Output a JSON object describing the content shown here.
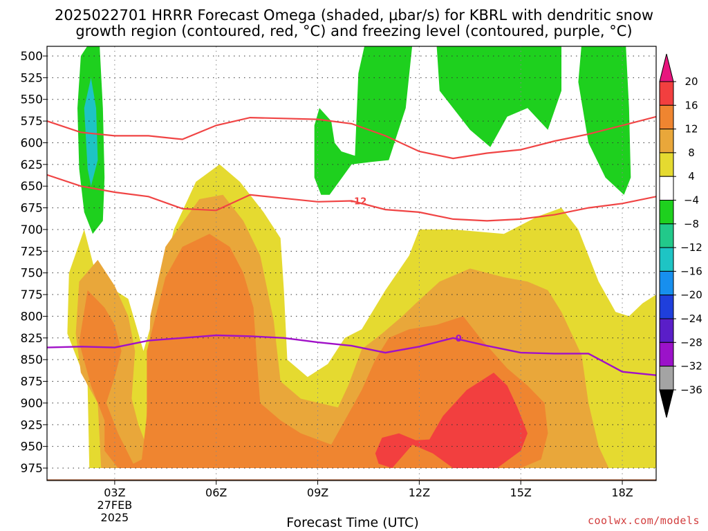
{
  "title_line1": "2025022701 HRRR Forecast Omega (shaded, μbar/s) for KBRL with dendritic snow",
  "title_line2": "growth region (contoured, red, °C) and freezing level (contoured, purple, °C)",
  "credit": "coolwx.com/models",
  "chart_data": {
    "type": "area",
    "xlabel": "Forecast Time (UTC)",
    "ylabel": "",
    "x_range_hours_utc": [
      1,
      19
    ],
    "y_axis": {
      "scale": "pressure (hPa), inverted",
      "range": [
        975,
        500
      ]
    },
    "grid": "dotted",
    "x_ticks": [
      {
        "hour": 3,
        "label": "03Z",
        "sub": [
          "27FEB",
          "2025"
        ]
      },
      {
        "hour": 6,
        "label": "06Z"
      },
      {
        "hour": 9,
        "label": "09Z"
      },
      {
        "hour": 12,
        "label": "12Z"
      },
      {
        "hour": 15,
        "label": "15Z"
      },
      {
        "hour": 18,
        "label": "18Z"
      }
    ],
    "y_ticks": [
      500,
      525,
      550,
      575,
      600,
      625,
      650,
      675,
      700,
      725,
      750,
      775,
      800,
      825,
      850,
      875,
      900,
      925,
      950,
      975
    ],
    "colorbar": {
      "labels": [
        "20",
        "16",
        "12",
        "8",
        "4",
        "−4",
        "−8",
        "−12",
        "−16",
        "−20",
        "−24",
        "−28",
        "−32",
        "−36"
      ],
      "bins": [
        {
          "min": 20,
          "max": null,
          "color": "#e8157e"
        },
        {
          "min": 16,
          "max": 20,
          "color": "#f23f3f"
        },
        {
          "min": 12,
          "max": 16,
          "color": "#ef8530"
        },
        {
          "min": 8,
          "max": 12,
          "color": "#e9a73a"
        },
        {
          "min": 4,
          "max": 8,
          "color": "#e5da30"
        },
        {
          "min": -4,
          "max": 4,
          "color": "#ffffff"
        },
        {
          "min": -8,
          "max": -4,
          "color": "#1ed01e"
        },
        {
          "min": -12,
          "max": -8,
          "color": "#22c98a"
        },
        {
          "min": -16,
          "max": -12,
          "color": "#1ec4c4"
        },
        {
          "min": -20,
          "max": -16,
          "color": "#178fee"
        },
        {
          "min": -24,
          "max": -20,
          "color": "#1f3fdc"
        },
        {
          "min": -28,
          "max": -24,
          "color": "#5a1ec8"
        },
        {
          "min": -32,
          "max": -28,
          "color": "#9b12c9"
        },
        {
          "min": -36,
          "max": -32,
          "color": "#a4a4a4"
        },
        {
          "min": null,
          "max": -36,
          "color": "#000000"
        }
      ]
    },
    "shaded_regions": [
      {
        "level": 4,
        "color": "#e5da30",
        "points": [
          [
            2.25,
            975
          ],
          [
            2.2,
            880
          ],
          [
            1.6,
            820
          ],
          [
            1.65,
            750
          ],
          [
            2.1,
            700
          ],
          [
            2.5,
            760
          ],
          [
            3.0,
            770
          ],
          [
            3.4,
            780
          ],
          [
            3.85,
            840
          ],
          [
            4.15,
            800
          ],
          [
            4.75,
            700
          ],
          [
            5.4,
            645
          ],
          [
            6.1,
            625
          ],
          [
            6.7,
            645
          ],
          [
            7.4,
            680
          ],
          [
            7.9,
            710
          ],
          [
            8.0,
            770
          ],
          [
            8.1,
            850
          ],
          [
            8.7,
            870
          ],
          [
            9.3,
            855
          ],
          [
            9.8,
            825
          ],
          [
            10.3,
            815
          ],
          [
            11.0,
            770
          ],
          [
            11.7,
            730
          ],
          [
            12.0,
            700
          ],
          [
            13.0,
            700
          ],
          [
            14.5,
            705
          ],
          [
            15.5,
            685
          ],
          [
            16.2,
            675
          ],
          [
            16.7,
            700
          ],
          [
            17.3,
            760
          ],
          [
            17.8,
            795
          ],
          [
            18.2,
            800
          ],
          [
            18.6,
            785
          ],
          [
            19.0,
            775
          ],
          [
            19.0,
            975
          ]
        ]
      },
      {
        "level": 8,
        "color": "#e9a73a",
        "points": [
          [
            2.6,
            975
          ],
          [
            2.5,
            900
          ],
          [
            2.0,
            865
          ],
          [
            1.85,
            820
          ],
          [
            1.95,
            760
          ],
          [
            2.5,
            735
          ],
          [
            3.0,
            765
          ],
          [
            3.4,
            800
          ],
          [
            3.6,
            840
          ],
          [
            3.5,
            895
          ],
          [
            3.7,
            925
          ],
          [
            3.9,
            945
          ],
          [
            4.0,
            870
          ],
          [
            4.05,
            800
          ],
          [
            4.5,
            720
          ],
          [
            5.5,
            665
          ],
          [
            6.2,
            660
          ],
          [
            6.8,
            690
          ],
          [
            7.3,
            730
          ],
          [
            7.7,
            805
          ],
          [
            7.9,
            875
          ],
          [
            8.5,
            895
          ],
          [
            9.6,
            905
          ],
          [
            9.9,
            880
          ],
          [
            10.3,
            838
          ],
          [
            10.9,
            820
          ],
          [
            11.5,
            800
          ],
          [
            11.9,
            785
          ],
          [
            12.6,
            760
          ],
          [
            13.5,
            745
          ],
          [
            14.5,
            755
          ],
          [
            15.2,
            760
          ],
          [
            15.8,
            770
          ],
          [
            16.2,
            795
          ],
          [
            16.8,
            845
          ],
          [
            17.0,
            900
          ],
          [
            17.3,
            950
          ],
          [
            17.6,
            975
          ]
        ]
      },
      {
        "level": 12,
        "color": "#ef8530",
        "points": [
          [
            3.1,
            975
          ],
          [
            2.7,
            955
          ],
          [
            2.7,
            920
          ],
          [
            2.3,
            880
          ],
          [
            1.95,
            830
          ],
          [
            2.2,
            770
          ],
          [
            2.7,
            790
          ],
          [
            3.0,
            810
          ],
          [
            3.2,
            840
          ],
          [
            3.0,
            870
          ],
          [
            2.75,
            900
          ],
          [
            3.1,
            935
          ],
          [
            3.55,
            970
          ],
          [
            3.8,
            965
          ],
          [
            3.95,
            915
          ],
          [
            3.95,
            840
          ],
          [
            4.5,
            755
          ],
          [
            5.0,
            720
          ],
          [
            5.8,
            705
          ],
          [
            6.4,
            720
          ],
          [
            6.8,
            750
          ],
          [
            7.1,
            790
          ],
          [
            7.2,
            850
          ],
          [
            7.3,
            900
          ],
          [
            7.9,
            920
          ],
          [
            8.5,
            935
          ],
          [
            9.4,
            948
          ],
          [
            9.8,
            920
          ],
          [
            10.3,
            885
          ],
          [
            10.7,
            850
          ],
          [
            11.1,
            825
          ],
          [
            11.7,
            815
          ],
          [
            12.5,
            810
          ],
          [
            13.3,
            800
          ],
          [
            13.8,
            825
          ],
          [
            14.6,
            860
          ],
          [
            15.2,
            880
          ],
          [
            15.7,
            900
          ],
          [
            15.8,
            935
          ],
          [
            15.6,
            965
          ],
          [
            15.0,
            975
          ]
        ]
      },
      {
        "level": 16,
        "color": "#f23f3f",
        "points": [
          [
            10.7,
            958
          ],
          [
            10.9,
            940
          ],
          [
            11.4,
            935
          ],
          [
            11.9,
            943
          ],
          [
            12.3,
            942
          ],
          [
            12.7,
            915
          ],
          [
            13.4,
            885
          ],
          [
            14.2,
            865
          ],
          [
            14.6,
            880
          ],
          [
            14.9,
            905
          ],
          [
            15.2,
            935
          ],
          [
            15.0,
            955
          ],
          [
            14.3,
            975
          ],
          [
            13.7,
            975
          ],
          [
            13.0,
            975
          ],
          [
            12.4,
            958
          ],
          [
            11.8,
            948
          ],
          [
            11.2,
            975
          ],
          [
            10.8,
            970
          ]
        ]
      },
      {
        "level": -4,
        "color": "#1ed01e",
        "points": [
          [
            2.25,
            485
          ],
          [
            2.55,
            485
          ],
          [
            2.65,
            560
          ],
          [
            2.7,
            640
          ],
          [
            2.65,
            690
          ],
          [
            2.35,
            705
          ],
          [
            2.1,
            680
          ],
          [
            1.95,
            630
          ],
          [
            1.9,
            560
          ],
          [
            2.0,
            500
          ]
        ]
      },
      {
        "level": -4,
        "color": "#1ed01e",
        "points": [
          [
            9.05,
            560
          ],
          [
            9.4,
            575
          ],
          [
            9.5,
            600
          ],
          [
            9.7,
            610
          ],
          [
            10.1,
            615
          ],
          [
            10.2,
            520
          ],
          [
            10.4,
            485
          ],
          [
            16.2,
            485
          ],
          [
            16.2,
            540
          ],
          [
            15.8,
            585
          ],
          [
            15.2,
            560
          ],
          [
            14.6,
            570
          ],
          [
            14.1,
            605
          ],
          [
            13.5,
            585
          ],
          [
            12.6,
            540
          ],
          [
            12.5,
            480
          ],
          [
            11.8,
            485
          ],
          [
            11.6,
            560
          ],
          [
            11.1,
            620
          ],
          [
            10.6,
            622
          ],
          [
            10.0,
            625
          ],
          [
            9.35,
            660
          ],
          [
            9.1,
            660
          ],
          [
            8.9,
            640
          ],
          [
            8.9,
            580
          ]
        ]
      },
      {
        "level": -4,
        "color": "#1ed01e",
        "points": [
          [
            16.8,
            485
          ],
          [
            18.1,
            485
          ],
          [
            18.2,
            560
          ],
          [
            18.25,
            640
          ],
          [
            18.05,
            660
          ],
          [
            17.5,
            640
          ],
          [
            17.0,
            600
          ],
          [
            16.7,
            530
          ],
          [
            16.8,
            485
          ]
        ]
      },
      {
        "level": -8,
        "color": "#1ec4c4",
        "points": [
          [
            2.3,
            525
          ],
          [
            2.45,
            560
          ],
          [
            2.5,
            620
          ],
          [
            2.3,
            650
          ],
          [
            2.2,
            630
          ],
          [
            2.1,
            560
          ]
        ]
      }
    ],
    "dgz_contours": [
      {
        "level": -18,
        "points": [
          [
            1,
            575
          ],
          [
            2,
            588
          ],
          [
            3,
            592
          ],
          [
            4,
            592
          ],
          [
            5,
            596
          ],
          [
            6,
            580
          ],
          [
            7,
            571
          ],
          [
            8,
            572
          ],
          [
            9,
            573
          ],
          [
            10,
            578
          ],
          [
            11,
            592
          ],
          [
            12,
            610
          ],
          [
            13,
            618
          ],
          [
            14,
            612
          ],
          [
            15,
            608
          ],
          [
            16,
            598
          ],
          [
            17,
            590
          ],
          [
            18,
            580
          ],
          [
            19,
            570
          ]
        ]
      },
      {
        "level": -12,
        "label": "-12",
        "label_at": [
          10.0,
          667
        ],
        "points": [
          [
            1,
            637
          ],
          [
            2,
            650
          ],
          [
            3,
            657
          ],
          [
            4,
            662
          ],
          [
            5,
            676
          ],
          [
            6,
            678
          ],
          [
            7,
            660
          ],
          [
            8,
            664
          ],
          [
            9,
            668
          ],
          [
            10,
            667
          ],
          [
            11,
            677
          ],
          [
            12,
            680
          ],
          [
            13,
            688
          ],
          [
            14,
            690
          ],
          [
            15,
            688
          ],
          [
            16,
            683
          ],
          [
            17,
            675
          ],
          [
            18,
            670
          ],
          [
            19,
            662
          ]
        ]
      }
    ],
    "freezing_level": {
      "level": 0,
      "label": "0",
      "label_at": [
        13.0,
        825
      ],
      "points": [
        [
          1,
          836
        ],
        [
          2,
          835
        ],
        [
          3,
          836
        ],
        [
          4,
          828
        ],
        [
          5,
          825
        ],
        [
          6,
          822
        ],
        [
          7,
          823
        ],
        [
          8,
          825
        ],
        [
          9,
          830
        ],
        [
          10,
          834
        ],
        [
          11,
          842
        ],
        [
          12,
          835
        ],
        [
          13,
          825
        ],
        [
          14,
          834
        ],
        [
          15,
          842
        ],
        [
          16,
          843
        ],
        [
          17,
          843
        ],
        [
          18,
          864
        ],
        [
          19,
          868
        ]
      ]
    },
    "terrain_band_hpa": [
      988,
      1000
    ]
  }
}
